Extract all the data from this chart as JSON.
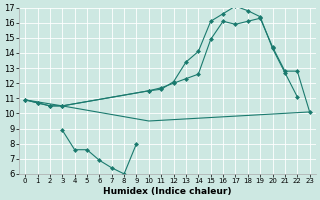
{
  "xlabel": "Humidex (Indice chaleur)",
  "bg_color": "#cde8e2",
  "grid_color": "#b8d8d2",
  "line_color": "#1a7a6e",
  "xlim": [
    -0.5,
    23.5
  ],
  "ylim": [
    6,
    17
  ],
  "xticks": [
    0,
    1,
    2,
    3,
    4,
    5,
    6,
    7,
    8,
    9,
    10,
    11,
    12,
    13,
    14,
    15,
    16,
    17,
    18,
    19,
    20,
    21,
    22,
    23
  ],
  "yticks": [
    6,
    7,
    8,
    9,
    10,
    11,
    12,
    13,
    14,
    15,
    16,
    17
  ],
  "series": [
    {
      "x": [
        0,
        3,
        10,
        23
      ],
      "y": [
        10.9,
        10.5,
        9.5,
        10.1
      ],
      "has_markers": false
    },
    {
      "x": [
        0,
        1,
        2,
        3,
        10,
        11,
        12,
        13,
        14,
        15,
        16,
        17,
        18,
        19,
        20,
        21,
        22
      ],
      "y": [
        10.9,
        10.7,
        10.5,
        10.5,
        11.5,
        11.6,
        12.1,
        13.4,
        14.1,
        16.1,
        16.6,
        17.1,
        16.8,
        16.4,
        14.3,
        12.7,
        11.1
      ],
      "has_markers": true
    },
    {
      "x": [
        0,
        1,
        2,
        3,
        10,
        11,
        12,
        13,
        14,
        15,
        16,
        17,
        18,
        19,
        20,
        21,
        22,
        23
      ],
      "y": [
        10.9,
        10.7,
        10.5,
        10.5,
        11.5,
        11.7,
        12.0,
        12.3,
        12.6,
        14.9,
        16.1,
        15.9,
        16.1,
        16.3,
        14.4,
        12.8,
        12.8,
        10.1
      ],
      "has_markers": true
    },
    {
      "x": [
        3,
        4,
        5,
        6,
        7,
        8,
        9
      ],
      "y": [
        8.9,
        7.6,
        7.6,
        6.9,
        6.4,
        6.0,
        8.0
      ],
      "has_markers": true
    }
  ]
}
